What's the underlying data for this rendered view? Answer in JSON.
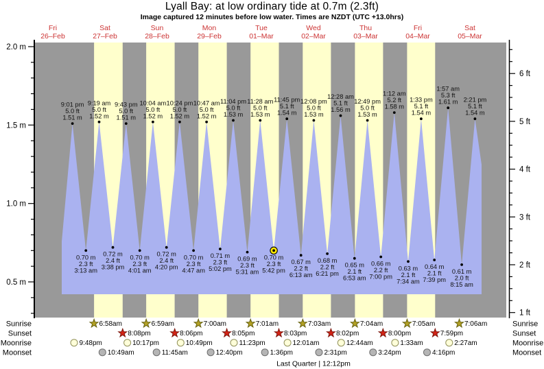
{
  "header": {
    "title": "Lyall Bay: at low  ordinary tide at 0.7m (2.3ft)",
    "subtitle": "Image captured 12 minutes before low water. Times are NZDT (UTC +13.0hrs)"
  },
  "chart_data": {
    "type": "area",
    "title": "Lyall Bay: at low  ordinary tide at 0.7m (2.3ft)",
    "subtitle": "Image captured 12 minutes before low water. Times are NZDT (UTC +13.0hrs)",
    "legend_position": "none",
    "grid": false,
    "day_labels": [
      {
        "dow": "Fri",
        "date": "26–Feb"
      },
      {
        "dow": "Sat",
        "date": "27–Feb"
      },
      {
        "dow": "Sun",
        "date": "28–Feb"
      },
      {
        "dow": "Mon",
        "date": "29–Feb"
      },
      {
        "dow": "Tue",
        "date": "01–Mar"
      },
      {
        "dow": "Wed",
        "date": "02–Mar"
      },
      {
        "dow": "Thu",
        "date": "03–Mar"
      },
      {
        "dow": "Fri",
        "date": "04–Mar"
      },
      {
        "dow": "Sat",
        "date": "05–Mar"
      }
    ],
    "y_axis_left": {
      "unit": "m",
      "major_values": [
        2.0,
        1.5,
        1.0,
        0.5
      ],
      "major_labels": [
        "2.0 m",
        "1.5 m",
        "1.0 m",
        "0.5 m"
      ],
      "minor_step": 0.1,
      "ylim_m": [
        0.27,
        2.03
      ]
    },
    "y_axis_right": {
      "unit": "ft",
      "major_values": [
        6,
        5,
        4,
        3,
        2,
        1
      ],
      "major_labels": [
        "6 ft",
        "5 ft",
        "4 ft",
        "3 ft",
        "2 ft",
        "1 ft"
      ],
      "minor_step_ft": 0.25
    },
    "tide_events": [
      {
        "day": 0,
        "time": "9:01 pm",
        "type": "high",
        "ft": "5.0",
        "m": "1.51"
      },
      {
        "day": 1,
        "time": "3:13 am",
        "type": "low",
        "ft": "2.3",
        "m": "0.70"
      },
      {
        "day": 1,
        "time": "9:19 am",
        "type": "high",
        "ft": "5.0",
        "m": "1.52"
      },
      {
        "day": 1,
        "time": "3:38 pm",
        "type": "low",
        "ft": "2.4",
        "m": "0.72"
      },
      {
        "day": 1,
        "time": "9:43 pm",
        "type": "high",
        "ft": "5.0",
        "m": "1.51"
      },
      {
        "day": 2,
        "time": "4:01 am",
        "type": "low",
        "ft": "2.3",
        "m": "0.70"
      },
      {
        "day": 2,
        "time": "10:04 am",
        "type": "high",
        "ft": "5.0",
        "m": "1.52"
      },
      {
        "day": 2,
        "time": "4:20 pm",
        "type": "low",
        "ft": "2.4",
        "m": "0.72"
      },
      {
        "day": 2,
        "time": "10:24 pm",
        "type": "high",
        "ft": "5.0",
        "m": "1.52"
      },
      {
        "day": 3,
        "time": "4:47 am",
        "type": "low",
        "ft": "2.3",
        "m": "0.70"
      },
      {
        "day": 3,
        "time": "10:47 am",
        "type": "high",
        "ft": "5.0",
        "m": "1.52"
      },
      {
        "day": 3,
        "time": "5:02 pm",
        "type": "low",
        "ft": "2.3",
        "m": "0.71"
      },
      {
        "day": 3,
        "time": "11:04 pm",
        "type": "high",
        "ft": "5.0",
        "m": "1.53"
      },
      {
        "day": 4,
        "time": "5:31 am",
        "type": "low",
        "ft": "2.3",
        "m": "0.69"
      },
      {
        "day": 4,
        "time": "11:28 am",
        "type": "high",
        "ft": "5.0",
        "m": "1.53"
      },
      {
        "day": 4,
        "time": "5:42 pm",
        "type": "low",
        "ft": "2.3",
        "m": "0.70"
      },
      {
        "day": 4,
        "time": "11:45 pm",
        "type": "high",
        "ft": "5.1",
        "m": "1.54"
      },
      {
        "day": 5,
        "time": "6:13 am",
        "type": "low",
        "ft": "2.2",
        "m": "0.67"
      },
      {
        "day": 5,
        "time": "12:08 pm",
        "type": "high",
        "ft": "5.0",
        "m": "1.53"
      },
      {
        "day": 5,
        "time": "6:21 pm",
        "type": "low",
        "ft": "2.2",
        "m": "0.68"
      },
      {
        "day": 6,
        "time": "12:28 am",
        "type": "high",
        "ft": "5.1",
        "m": "1.56"
      },
      {
        "day": 6,
        "time": "6:53 am",
        "type": "low",
        "ft": "2.1",
        "m": "0.65"
      },
      {
        "day": 6,
        "time": "12:49 pm",
        "type": "high",
        "ft": "5.0",
        "m": "1.53"
      },
      {
        "day": 6,
        "time": "7:00 pm",
        "type": "low",
        "ft": "2.2",
        "m": "0.66"
      },
      {
        "day": 7,
        "time": "1:12 am",
        "type": "high",
        "ft": "5.2",
        "m": "1.58"
      },
      {
        "day": 7,
        "time": "7:34 am",
        "type": "low",
        "ft": "2.1",
        "m": "0.63"
      },
      {
        "day": 7,
        "time": "1:33 pm",
        "type": "high",
        "ft": "5.1",
        "m": "1.54"
      },
      {
        "day": 7,
        "time": "7:39 pm",
        "type": "low",
        "ft": "2.1",
        "m": "0.64"
      },
      {
        "day": 8,
        "time": "1:57 am",
        "type": "high",
        "ft": "5.3",
        "m": "1.61"
      },
      {
        "day": 8,
        "time": "8:15 am",
        "type": "low",
        "ft": "2.0",
        "m": "0.61"
      },
      {
        "day": 8,
        "time": "2:21 pm",
        "type": "high",
        "ft": "5.1",
        "m": "1.54"
      }
    ],
    "highlight_event_index": 15,
    "row_labels": {
      "sunrise": "Sunrise",
      "sunset": "Sunset",
      "moonrise": "Moonrise",
      "moonset": "Moonset"
    },
    "sunrise": [
      {
        "day": 1,
        "time": "6:58am"
      },
      {
        "day": 2,
        "time": "6:59am"
      },
      {
        "day": 3,
        "time": "7:00am"
      },
      {
        "day": 4,
        "time": "7:01am"
      },
      {
        "day": 5,
        "time": "7:03am"
      },
      {
        "day": 6,
        "time": "7:04am"
      },
      {
        "day": 7,
        "time": "7:05am"
      },
      {
        "day": 8,
        "time": "7:06am"
      }
    ],
    "sunset": [
      {
        "day": 1,
        "time": "8:08pm"
      },
      {
        "day": 2,
        "time": "8:06pm"
      },
      {
        "day": 3,
        "time": "8:05pm"
      },
      {
        "day": 4,
        "time": "8:03pm"
      },
      {
        "day": 5,
        "time": "8:02pm"
      },
      {
        "day": 6,
        "time": "8:00pm"
      },
      {
        "day": 7,
        "time": "7:59pm"
      }
    ],
    "moonrise": [
      {
        "day": 0,
        "time": "9:48pm"
      },
      {
        "day": 1,
        "time": "10:17pm"
      },
      {
        "day": 2,
        "time": "10:49pm"
      },
      {
        "day": 3,
        "time": "11:23pm"
      },
      {
        "day": 5,
        "time": "12:01am"
      },
      {
        "day": 6,
        "time": "12:44am"
      },
      {
        "day": 7,
        "time": "1:33am"
      },
      {
        "day": 8,
        "time": "2:27am"
      }
    ],
    "moonset": [
      {
        "day": 1,
        "time": "10:49am"
      },
      {
        "day": 2,
        "time": "11:45am"
      },
      {
        "day": 3,
        "time": "12:40pm"
      },
      {
        "day": 4,
        "time": "1:36pm"
      },
      {
        "day": 5,
        "time": "2:31pm"
      },
      {
        "day": 6,
        "time": "3:24pm"
      },
      {
        "day": 7,
        "time": "4:16pm"
      }
    ],
    "moon_phase": {
      "day": 5,
      "text": "Last Quarter | 12:12pm"
    },
    "colors": {
      "night_band": "#999999",
      "daylight_band": "#ffffcc",
      "tide_fill": "#aab2f0",
      "day_label_red": "#cc3333",
      "axis_black": "#000000",
      "sunrise_star_fill": "#b3a125",
      "sunrise_star_stroke": "#66610e",
      "sunset_star_fill": "#d42316",
      "sunset_star_stroke": "#7d150c",
      "moonrise_fill": "#ffffd9",
      "moonrise_stroke": "#90905a",
      "moonset_fill": "#b5b5b5",
      "moonset_stroke": "#6e6e6e",
      "highlight_fill": "#ffe800"
    }
  }
}
